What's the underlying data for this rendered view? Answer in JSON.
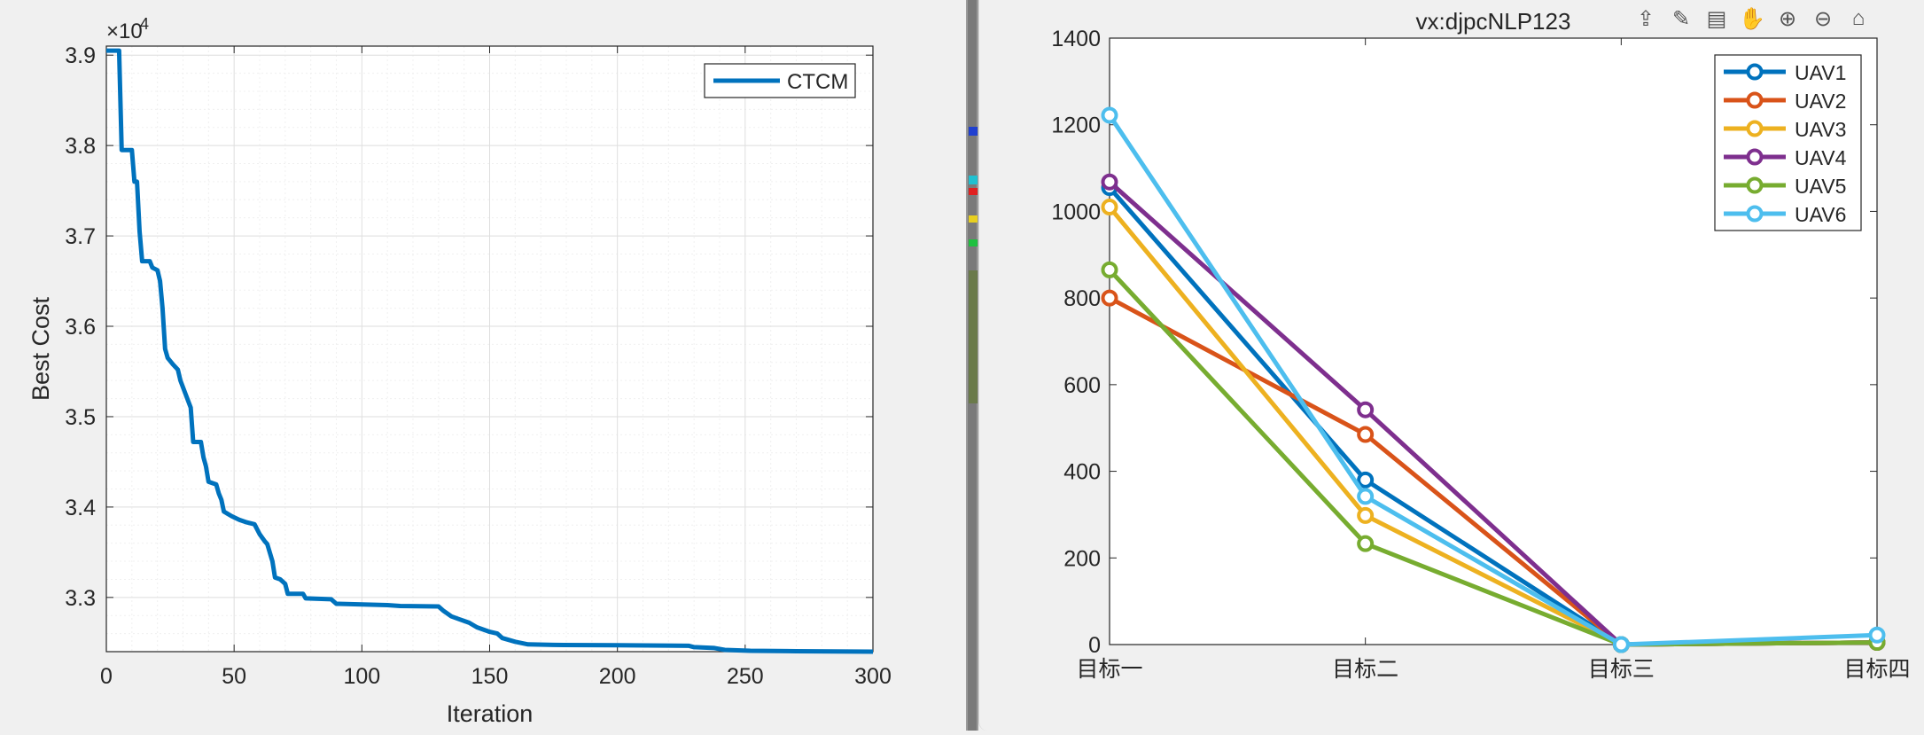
{
  "chart_data": [
    {
      "type": "line",
      "title": "",
      "xlabel": "Iteration",
      "ylabel": "Best Cost",
      "y_exponent_label": "×10",
      "y_exponent_power": "4",
      "xlim": [
        0,
        300
      ],
      "ylim": [
        32400,
        39100
      ],
      "xticks": [
        0,
        50,
        100,
        150,
        200,
        250,
        300
      ],
      "yticks": [
        33000,
        34000,
        35000,
        36000,
        37000,
        38000,
        39000
      ],
      "ytick_labels": [
        "3.3",
        "3.4",
        "3.5",
        "3.6",
        "3.7",
        "3.8",
        "3.9"
      ],
      "grid": true,
      "minor_grid": true,
      "legend_position": "top-right",
      "series": [
        {
          "name": "CTCM",
          "color": "#0072BD",
          "points": [
            [
              0,
              39050
            ],
            [
              5,
              39050
            ],
            [
              6,
              37950
            ],
            [
              10,
              37950
            ],
            [
              11,
              37600
            ],
            [
              12,
              37600
            ],
            [
              13,
              37050
            ],
            [
              14,
              36720
            ],
            [
              17,
              36720
            ],
            [
              18,
              36650
            ],
            [
              20,
              36620
            ],
            [
              21,
              36500
            ],
            [
              22,
              36200
            ],
            [
              23,
              35750
            ],
            [
              24,
              35650
            ],
            [
              26,
              35580
            ],
            [
              28,
              35520
            ],
            [
              29,
              35400
            ],
            [
              31,
              35250
            ],
            [
              33,
              35100
            ],
            [
              34,
              34720
            ],
            [
              37,
              34720
            ],
            [
              38,
              34550
            ],
            [
              39,
              34450
            ],
            [
              40,
              34280
            ],
            [
              43,
              34250
            ],
            [
              44,
              34150
            ],
            [
              45,
              34080
            ],
            [
              46,
              33950
            ],
            [
              49,
              33900
            ],
            [
              52,
              33860
            ],
            [
              55,
              33830
            ],
            [
              58,
              33810
            ],
            [
              60,
              33700
            ],
            [
              62,
              33620
            ],
            [
              63,
              33590
            ],
            [
              65,
              33400
            ],
            [
              66,
              33220
            ],
            [
              68,
              33200
            ],
            [
              70,
              33150
            ],
            [
              71,
              33040
            ],
            [
              77,
              33040
            ],
            [
              78,
              32990
            ],
            [
              88,
              32980
            ],
            [
              90,
              32930
            ],
            [
              110,
              32915
            ],
            [
              115,
              32905
            ],
            [
              130,
              32900
            ],
            [
              132,
              32850
            ],
            [
              135,
              32790
            ],
            [
              138,
              32760
            ],
            [
              142,
              32720
            ],
            [
              145,
              32670
            ],
            [
              150,
              32620
            ],
            [
              153,
              32600
            ],
            [
              155,
              32550
            ],
            [
              160,
              32510
            ],
            [
              165,
              32480
            ],
            [
              175,
              32475
            ],
            [
              200,
              32472
            ],
            [
              228,
              32465
            ],
            [
              230,
              32450
            ],
            [
              238,
              32440
            ],
            [
              242,
              32420
            ],
            [
              252,
              32410
            ],
            [
              270,
              32405
            ],
            [
              300,
              32400
            ]
          ]
        }
      ]
    },
    {
      "type": "line",
      "title": "vx:djpcNLP123",
      "xlabel": "",
      "ylabel": "",
      "categories": [
        "目标一",
        "目标二",
        "目标三",
        "目标四"
      ],
      "ylim": [
        0,
        1400
      ],
      "yticks": [
        0,
        200,
        400,
        600,
        800,
        1000,
        1200,
        1400
      ],
      "grid": false,
      "legend_position": "top-right",
      "series": [
        {
          "name": "UAV1",
          "color": "#0072BD",
          "values": [
            1055,
            380,
            0,
            5
          ]
        },
        {
          "name": "UAV2",
          "color": "#D95319",
          "values": [
            800,
            485,
            0,
            5
          ]
        },
        {
          "name": "UAV3",
          "color": "#EDB120",
          "values": [
            1010,
            298,
            0,
            5
          ]
        },
        {
          "name": "UAV4",
          "color": "#7E2F8E",
          "values": [
            1068,
            542,
            0,
            5
          ]
        },
        {
          "name": "UAV5",
          "color": "#77AC30",
          "values": [
            865,
            233,
            0,
            5
          ]
        },
        {
          "name": "UAV6",
          "color": "#4DBEEE",
          "values": [
            1222,
            342,
            0,
            22
          ]
        }
      ]
    }
  ],
  "toolbar": {
    "icons": [
      "export-icon",
      "brush-icon",
      "datatip-icon",
      "pan-icon",
      "zoom-in-icon",
      "zoom-out-icon",
      "home-icon"
    ],
    "glyphs": [
      "⇪",
      "✎",
      "▤",
      "✋",
      "⊕",
      "⊖",
      "⌂"
    ]
  }
}
